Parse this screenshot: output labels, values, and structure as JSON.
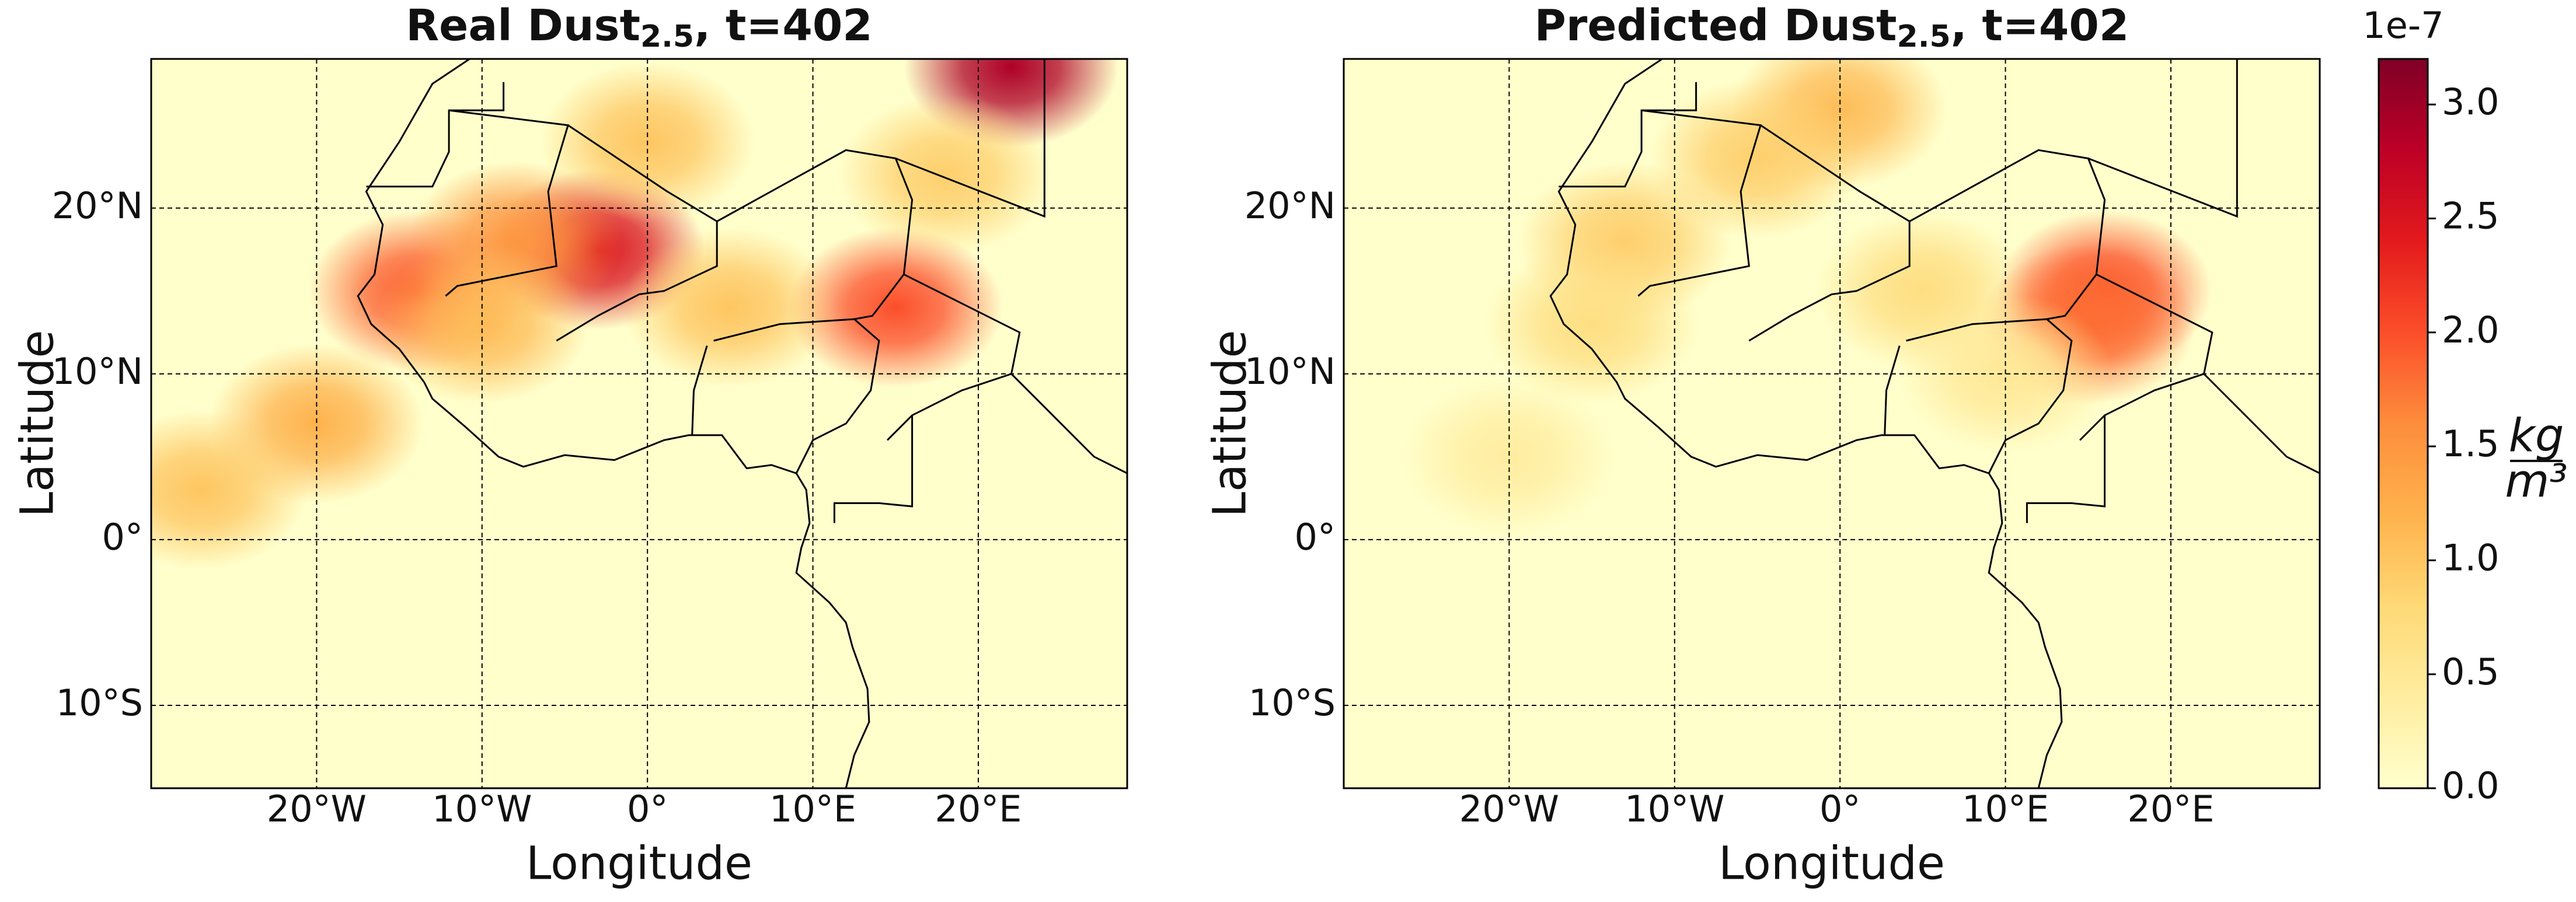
{
  "panels": [
    {
      "title": {
        "prefix": "Real Dust",
        "subscript": "2.5",
        "suffix": ", t=402"
      },
      "xlabel": "Longitude",
      "ylabel": "Latitude",
      "hotspots": [
        {
          "lon": -3,
          "lat": 17.5,
          "value": 2.5
        },
        {
          "lon": -14,
          "lat": 15,
          "value": 1.9
        },
        {
          "lon": 15,
          "lat": 14,
          "value": 2.0
        },
        {
          "lon": 22,
          "lat": 28.5,
          "value": 2.9
        },
        {
          "lon": -8,
          "lat": 18,
          "value": 1.5
        },
        {
          "lon": -20,
          "lat": 7,
          "value": 1.2
        },
        {
          "lon": -27,
          "lat": 3,
          "value": 1.0
        },
        {
          "lon": 5,
          "lat": 14,
          "value": 1.0
        },
        {
          "lon": -10,
          "lat": 13,
          "value": 1.1
        },
        {
          "lon": 0,
          "lat": 24,
          "value": 1.0
        },
        {
          "lon": 18,
          "lat": 22,
          "value": 0.9
        }
      ]
    },
    {
      "title": {
        "prefix": "Predicted Dust",
        "subscript": "2.5",
        "suffix": ", t=402"
      },
      "xlabel": "Longitude",
      "ylabel": "Latitude",
      "hotspots": [
        {
          "lon": 16,
          "lat": 15,
          "value": 2.0
        },
        {
          "lon": 15,
          "lat": 13,
          "value": 1.8
        },
        {
          "lon": 0,
          "lat": 26,
          "value": 1.1
        },
        {
          "lon": -5,
          "lat": 23,
          "value": 0.9
        },
        {
          "lon": -13,
          "lat": 18,
          "value": 0.9
        },
        {
          "lon": 5,
          "lat": 15,
          "value": 0.7
        },
        {
          "lon": -15,
          "lat": 13,
          "value": 0.7
        },
        {
          "lon": -20,
          "lat": 5,
          "value": 0.4
        },
        {
          "lon": 10,
          "lat": 10,
          "value": 0.5
        }
      ]
    }
  ],
  "xlim": [
    -30,
    29
  ],
  "ylim": [
    -15,
    29
  ],
  "xticks": [
    {
      "value": -20,
      "label": "20°W"
    },
    {
      "value": -10,
      "label": "10°W"
    },
    {
      "value": 0,
      "label": "0°"
    },
    {
      "value": 10,
      "label": "10°E"
    },
    {
      "value": 20,
      "label": "20°E"
    }
  ],
  "yticks": [
    {
      "value": -10,
      "label": "10°S"
    },
    {
      "value": 0,
      "label": "0°"
    },
    {
      "value": 10,
      "label": "10°N"
    },
    {
      "value": 20,
      "label": "20°N"
    }
  ],
  "grid": true,
  "colorbar": {
    "lim": [
      0,
      3.2
    ],
    "ticks": [
      {
        "value": 0,
        "label": "0.0"
      },
      0.5,
      {
        "value": 1,
        "label": "1.0"
      },
      1.5,
      {
        "value": 2,
        "label": "2.0"
      },
      2.5,
      {
        "value": 3,
        "label": "3.0"
      }
    ],
    "offset": "1e-7",
    "unit_numerator": "kg",
    "unit_denominator": "m³",
    "colormap": [
      "#ffffcc",
      "#ffeda0",
      "#fed976",
      "#feb24c",
      "#fd8d3c",
      "#fc4e2a",
      "#e31a1c",
      "#bd0026",
      "#800026"
    ]
  }
}
